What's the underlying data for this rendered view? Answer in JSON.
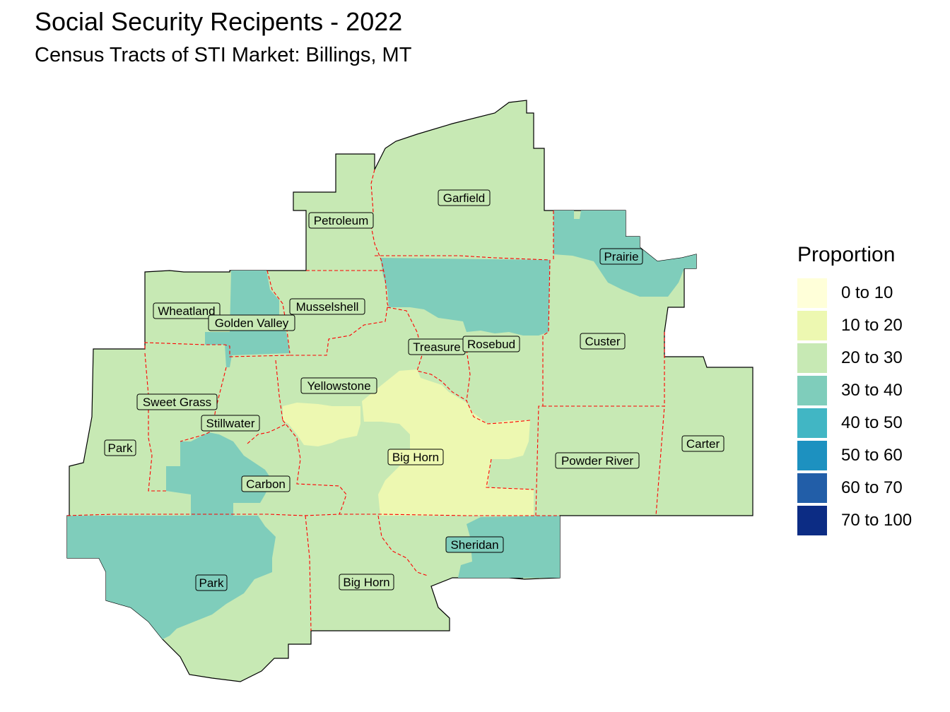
{
  "title": "Social Security Recipents - 2022",
  "subtitle": "Census Tracts of STI Market: Billings, MT",
  "map": {
    "legend": {
      "title": "Proportion",
      "items": [
        {
          "label": "0 to 10",
          "color": "#ffffd9"
        },
        {
          "label": "10 to 20",
          "color": "#edf8b1"
        },
        {
          "label": "20 to 30",
          "color": "#c7e9b4"
        },
        {
          "label": "30 to 40",
          "color": "#7fcdbb"
        },
        {
          "label": "40 to 50",
          "color": "#41b6c4"
        },
        {
          "label": "50 to 60",
          "color": "#1d91c0"
        },
        {
          "label": "60 to 70",
          "color": "#225ea8"
        },
        {
          "label": "70 to 100",
          "color": "#0c2c84"
        }
      ]
    },
    "county_labels": [
      "Garfield",
      "Petroleum",
      "Prairie",
      "Musselshell",
      "Wheatland",
      "Golden Valley",
      "Treasure",
      "Rosebud",
      "Custer",
      "Yellowstone",
      "Sweet Grass",
      "Stillwater",
      "Park",
      "Carbon",
      "Big Horn",
      "Powder River",
      "Carter",
      "Sheridan",
      "Park",
      "Big Horn"
    ],
    "colors": {
      "boundary": "#ff0000",
      "outline": "#000000",
      "label_bg": "#c7e9b4"
    }
  }
}
